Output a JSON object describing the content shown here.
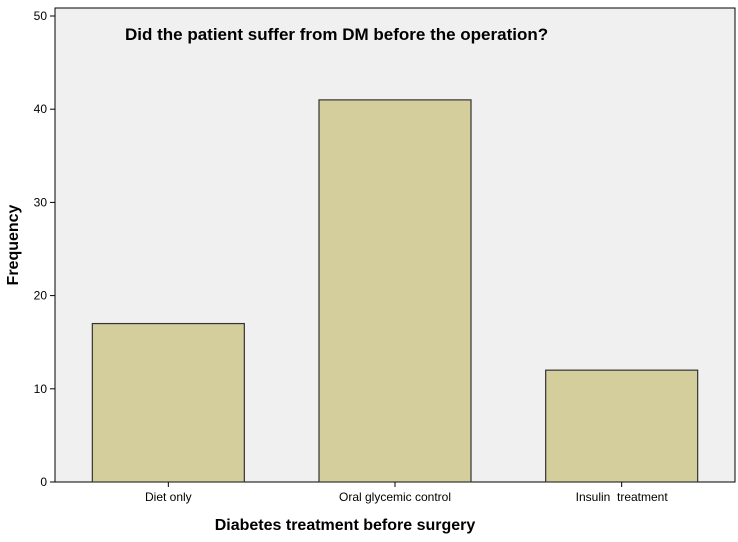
{
  "chart_data": {
    "type": "bar",
    "title": "Did the patient suffer from DM before the operation?",
    "xlabel": "Diabetes treatment before surgery",
    "ylabel": "Frequency",
    "categories": [
      "Diet only",
      "Oral glycemic control",
      "Insulin  treatment"
    ],
    "values": [
      17,
      41,
      12
    ],
    "ylim": [
      0,
      50
    ],
    "yticks": [
      0,
      10,
      20,
      30,
      40,
      50
    ],
    "grid": false,
    "legend": "none",
    "colors": {
      "plot_background": "#f0f0f0",
      "bar_fill": "#d3ce9b",
      "bar_stroke": "#333333"
    }
  }
}
